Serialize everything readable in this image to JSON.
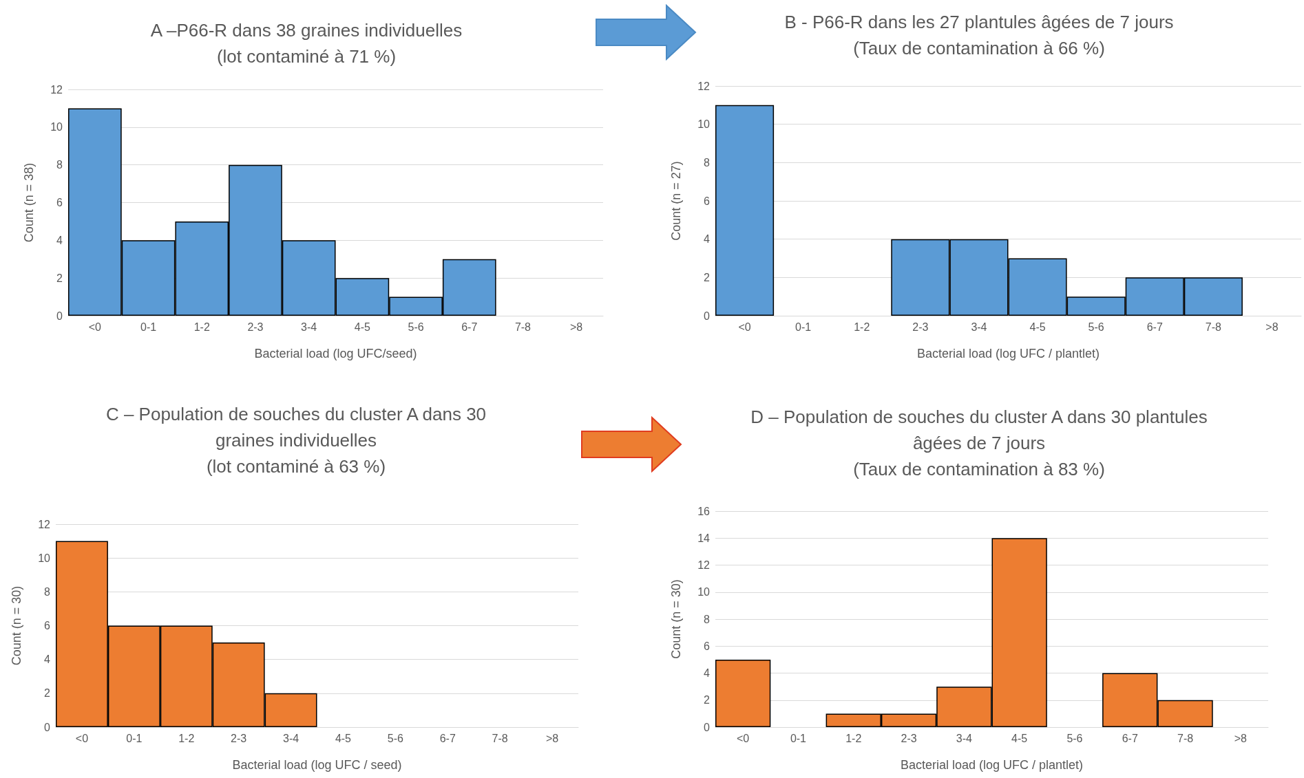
{
  "chart_data": [
    {
      "type": "bar",
      "title": "A –P66-R dans 38 graines individuelles\n(lot contaminé à 71 %)",
      "xlabel": "Bacterial load (log UFC/seed)",
      "ylabel": "Count (n = 38)",
      "categories": [
        "<0",
        "0-1",
        "1-2",
        "2-3",
        "3-4",
        "4-5",
        "5-6",
        "6-7",
        "7-8",
        ">8"
      ],
      "values": [
        11,
        4,
        5,
        8,
        4,
        2,
        1,
        3,
        0,
        0
      ],
      "color": "#5b9bd5",
      "ylim": [
        0,
        12
      ],
      "yticks": [
        0,
        2,
        4,
        6,
        8,
        10,
        12
      ],
      "grid": "y"
    },
    {
      "type": "bar",
      "title": "B - P66-R dans les 27 plantules âgées de 7 jours\n(Taux de contamination à 66 %)",
      "xlabel": "Bacterial load (log UFC / plantlet)",
      "ylabel": "Count (n = 27)",
      "categories": [
        "<0",
        "0-1",
        "1-2",
        "2-3",
        "3-4",
        "4-5",
        "5-6",
        "6-7",
        "7-8",
        ">8"
      ],
      "values": [
        11,
        0,
        0,
        4,
        4,
        3,
        1,
        2,
        2,
        0
      ],
      "color": "#5b9bd5",
      "ylim": [
        0,
        12
      ],
      "yticks": [
        0,
        2,
        4,
        6,
        8,
        10,
        12
      ],
      "grid": "y"
    },
    {
      "type": "bar",
      "title": "C – Population de souches du cluster A dans 30\ngraines individuelles\n(lot contaminé à 63 %)",
      "xlabel": "Bacterial load (log UFC / seed)",
      "ylabel": "Count (n = 30)",
      "categories": [
        "<0",
        "0-1",
        "1-2",
        "2-3",
        "3-4",
        "4-5",
        "5-6",
        "6-7",
        "7-8",
        ">8"
      ],
      "values": [
        11,
        6,
        6,
        5,
        2,
        0,
        0,
        0,
        0,
        0
      ],
      "color": "#ed7d31",
      "ylim": [
        0,
        12
      ],
      "yticks": [
        0,
        2,
        4,
        6,
        8,
        10,
        12
      ],
      "grid": "y"
    },
    {
      "type": "bar",
      "title": "D – Population de souches du cluster A dans 30 plantules\nâgées de 7 jours\n(Taux de contamination à 83 %)",
      "xlabel": "Bacterial load (log UFC / plantlet)",
      "ylabel": "Count (n = 30)",
      "categories": [
        "<0",
        "0-1",
        "1-2",
        "2-3",
        "3-4",
        "4-5",
        "5-6",
        "6-7",
        "7-8",
        ">8"
      ],
      "values": [
        5,
        0,
        1,
        1,
        3,
        14,
        0,
        4,
        2,
        0
      ],
      "color": "#ed7d31",
      "ylim": [
        0,
        16
      ],
      "yticks": [
        0,
        2,
        4,
        6,
        8,
        10,
        12,
        14,
        16
      ],
      "grid": "y"
    }
  ]
}
